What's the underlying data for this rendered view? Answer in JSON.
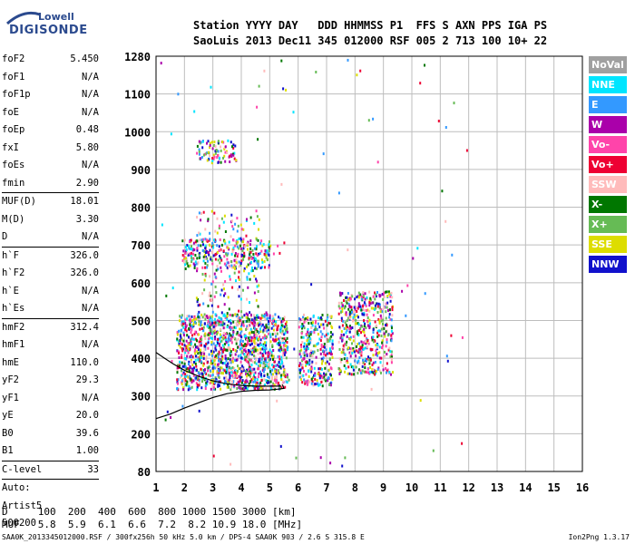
{
  "logo": {
    "top": "Lowell",
    "bottom": "DIGISONDE"
  },
  "header": {
    "line1": "Station YYYY DAY   DDD HHMMSS P1  FFS S AXN PPS IGA PS",
    "line2": "SaoLuis 2013 Dec11 345 012000 RSF 005 2 713 100 10+ 22"
  },
  "params": {
    "group1": [
      {
        "label": "foF2",
        "value": "5.450"
      },
      {
        "label": "foF1",
        "value": "N/A"
      },
      {
        "label": "foF1p",
        "value": "N/A"
      },
      {
        "label": "foE",
        "value": "N/A"
      },
      {
        "label": "foEp",
        "value": "0.48"
      },
      {
        "label": "fxI",
        "value": "5.80"
      },
      {
        "label": "foEs",
        "value": "N/A"
      },
      {
        "label": "fmin",
        "value": "2.90"
      }
    ],
    "group2": [
      {
        "label": "MUF(D)",
        "value": "18.01"
      },
      {
        "label": "M(D)",
        "value": "3.30"
      },
      {
        "label": "D",
        "value": "N/A"
      }
    ],
    "group3": [
      {
        "label": "h`F",
        "value": "326.0"
      },
      {
        "label": "h`F2",
        "value": "326.0"
      },
      {
        "label": "h`E",
        "value": "N/A"
      },
      {
        "label": "h`Es",
        "value": "N/A"
      }
    ],
    "group4": [
      {
        "label": "hmF2",
        "value": "312.4"
      },
      {
        "label": "hmF1",
        "value": "N/A"
      },
      {
        "label": "hmE",
        "value": "110.0"
      },
      {
        "label": "yF2",
        "value": "29.3"
      },
      {
        "label": "yF1",
        "value": "N/A"
      },
      {
        "label": "yE",
        "value": "20.0"
      },
      {
        "label": "B0",
        "value": "39.6"
      },
      {
        "label": "B1",
        "value": "1.00"
      }
    ],
    "clevel": {
      "label": "C-level",
      "value": "33"
    },
    "auto": [
      "Auto:",
      "Artist5",
      "500200"
    ]
  },
  "legend": [
    {
      "label": "NoVal",
      "color": "#a0a0a0"
    },
    {
      "label": "NNE",
      "color": "#00e5ff"
    },
    {
      "label": "E",
      "color": "#3399ff"
    },
    {
      "label": "W",
      "color": "#aa00aa"
    },
    {
      "label": "Vo-",
      "color": "#ff44aa"
    },
    {
      "label": "Vo+",
      "color": "#ee0033"
    },
    {
      "label": "SSW",
      "color": "#ffbbbb"
    },
    {
      "label": "X-",
      "color": "#007700"
    },
    {
      "label": "X+",
      "color": "#66bb55"
    },
    {
      "label": "SSE",
      "color": "#dddd00"
    },
    {
      "label": "NNW",
      "color": "#1111cc"
    }
  ],
  "bottom": {
    "line1": "D     100  200  400  600  800 1000 1500 3000 [km]",
    "line2": "MUF   5.8  5.9  6.1  6.6  7.2  8.2 10.9 18.0 [MHz]"
  },
  "footer": "SAA0K_2013345012000.RSF / 300fx256h 50 kHz 5.0 km / DPS-4 SAA0K 903 / 2.6 S 315.8 E",
  "version": "Ion2Png 1.3.17",
  "chart_data": {
    "type": "scatter",
    "x_ticks": [
      1,
      2,
      3,
      4,
      5,
      6,
      7,
      8,
      9,
      10,
      11,
      12,
      13,
      14,
      15,
      16
    ],
    "y_ticks": [
      80,
      200,
      300,
      400,
      500,
      600,
      700,
      800,
      900,
      1000,
      1100,
      1280
    ],
    "xlim": [
      1,
      16
    ],
    "ylim": [
      80,
      1280
    ],
    "grid": true,
    "trace": {
      "x": [
        1.0,
        1.5,
        2.0,
        2.5,
        3.0,
        3.5,
        4.0,
        4.5,
        5.0,
        5.3,
        5.5,
        5.45
      ],
      "y": [
        240,
        252,
        268,
        282,
        296,
        306,
        312,
        315,
        316,
        318,
        320,
        330
      ]
    },
    "trace2": {
      "x": [
        1.0,
        1.3,
        1.6,
        2.0,
        2.5,
        3.0,
        3.5,
        4.0,
        4.5,
        5.0,
        5.4
      ],
      "y": [
        415,
        400,
        385,
        368,
        352,
        340,
        332,
        328,
        326,
        326,
        326
      ]
    },
    "clusters": [
      {
        "xmin": 1.7,
        "xmax": 5.6,
        "ymin": 320,
        "ymax": 520,
        "n": 1300
      },
      {
        "xmin": 2.4,
        "xmax": 4.6,
        "ymin": 330,
        "ymax": 800,
        "n": 320
      },
      {
        "xmin": 1.9,
        "xmax": 5.0,
        "ymin": 640,
        "ymax": 720,
        "n": 260
      },
      {
        "xmin": 2.4,
        "xmax": 3.8,
        "ymin": 920,
        "ymax": 980,
        "n": 90
      },
      {
        "xmin": 6.0,
        "xmax": 7.2,
        "ymin": 330,
        "ymax": 520,
        "n": 300
      },
      {
        "xmin": 7.4,
        "xmax": 9.3,
        "ymin": 360,
        "ymax": 580,
        "n": 500
      },
      {
        "xmin": 1.0,
        "xmax": 12.0,
        "ymin": 100,
        "ymax": 1280,
        "n": 90
      }
    ]
  }
}
